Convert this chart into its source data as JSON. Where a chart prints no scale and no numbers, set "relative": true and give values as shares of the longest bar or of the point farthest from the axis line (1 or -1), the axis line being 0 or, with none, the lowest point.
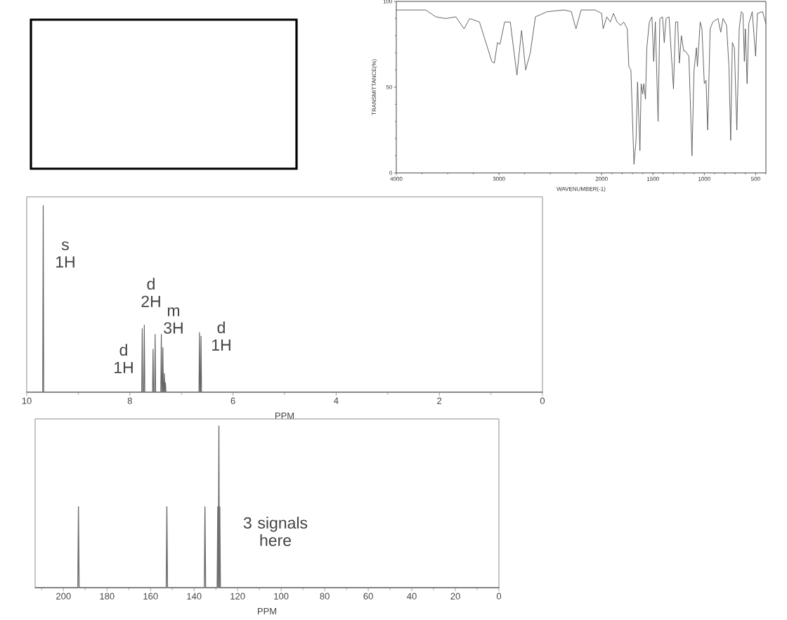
{
  "chart_data": [
    {
      "type": "line",
      "xlabel": "WAVENUMBER(-1)",
      "ylabel": "TRANSMITTANCE(%)",
      "x": [
        4000,
        3850,
        3715,
        3615,
        3520,
        3420,
        3340,
        3285,
        3190,
        3070,
        3045,
        3015,
        2990,
        2945,
        2890,
        2825,
        2780,
        2740,
        2695,
        2645,
        2530,
        2365,
        2295,
        2250,
        2200,
        2065,
        2000,
        1985,
        1950,
        1915,
        1885,
        1850,
        1815,
        1785,
        1750,
        1735,
        1715,
        1685,
        1665,
        1650,
        1627,
        1615,
        1600,
        1590,
        1573,
        1560,
        1535,
        1510,
        1493,
        1477,
        1450,
        1433,
        1407,
        1390,
        1373,
        1343,
        1323,
        1300,
        1280,
        1260,
        1243,
        1223,
        1200,
        1183,
        1150,
        1120,
        1100,
        1077,
        1067,
        1040,
        1023,
        1000,
        983,
        967,
        943,
        917,
        867,
        840,
        817,
        783,
        760,
        743,
        727,
        707,
        683,
        660,
        640,
        623,
        610,
        600,
        583,
        567,
        533,
        500,
        483,
        433,
        400
      ],
      "values": [
        95,
        95,
        95,
        91,
        90,
        91,
        84,
        90,
        88,
        65,
        64,
        76,
        75,
        88,
        88,
        57,
        83,
        60,
        70,
        91,
        94,
        95,
        94,
        84,
        95,
        95,
        93,
        84,
        91,
        88,
        93,
        88,
        86,
        88,
        84,
        62,
        60,
        5,
        19,
        53,
        13,
        52,
        46,
        52,
        43,
        73,
        88,
        91,
        65,
        88,
        30,
        90,
        91,
        76,
        90,
        91,
        71,
        49,
        88,
        88,
        64,
        80,
        71,
        71,
        68,
        10,
        60,
        73,
        62,
        88,
        84,
        52,
        54,
        25,
        84,
        88,
        90,
        82,
        90,
        86,
        62,
        19,
        76,
        73,
        25,
        84,
        94,
        93,
        65,
        84,
        52,
        87,
        94,
        68,
        93,
        94,
        87
      ],
      "color": "#555555",
      "xlim": [
        4000,
        400
      ],
      "xticks": [
        4000,
        {
          "value": 3750,
          "label": null
        },
        {
          "value": 3500,
          "label": null
        },
        {
          "value": 3250,
          "label": null
        },
        3000,
        {
          "value": 2750,
          "label": null
        },
        {
          "value": 2500,
          "label": null
        },
        {
          "value": 2250,
          "label": null
        },
        2000,
        {
          "value": 1900,
          "label": null
        },
        {
          "value": 1800,
          "label": null
        },
        {
          "value": 1700,
          "label": null
        },
        {
          "value": 1600,
          "label": null
        },
        1500,
        {
          "value": 1400,
          "label": null
        },
        {
          "value": 1300,
          "label": null
        },
        {
          "value": 1200,
          "label": null
        },
        {
          "value": 1100,
          "label": null
        },
        1000,
        {
          "value": 900,
          "label": null
        },
        {
          "value": 800,
          "label": null
        },
        {
          "value": 700,
          "label": null
        },
        {
          "value": 600,
          "label": null
        },
        500,
        {
          "value": 400,
          "label": null
        }
      ],
      "ylim": [
        0,
        100
      ],
      "yticks": [
        0,
        {
          "value": 10,
          "label": null
        },
        {
          "value": 20,
          "label": null
        },
        {
          "value": 30,
          "label": null
        },
        {
          "value": 40,
          "label": null
        },
        50,
        {
          "value": 60,
          "label": null
        },
        {
          "value": 70,
          "label": null
        },
        {
          "value": 80,
          "label": null
        },
        {
          "value": 90,
          "label": null
        },
        100
      ]
    },
    {
      "type": "line",
      "xlabel": "PPM",
      "relative": true,
      "x": [
        10,
        9.69,
        9.68,
        9.67,
        7.77,
        7.76,
        7.75,
        7.73,
        7.72,
        7.71,
        7.56,
        7.55,
        7.54,
        7.52,
        7.51,
        7.5,
        7.4,
        7.39,
        7.38,
        7.37,
        7.36,
        7.35,
        7.34,
        7.33,
        7.32,
        7.31,
        7.3,
        6.66,
        6.65,
        6.64,
        6.63,
        6.62,
        6.61,
        0
      ],
      "values": [
        0,
        0,
        1,
        0,
        0,
        0.34,
        0,
        0,
        0.36,
        0,
        0,
        0.23,
        0,
        0,
        0.31,
        0,
        0,
        0.31,
        0,
        0,
        0.24,
        0,
        0,
        0.1,
        0,
        0.05,
        0,
        0,
        0.32,
        0,
        0,
        0.3,
        0,
        0
      ],
      "color": "#666666",
      "xlim": [
        10,
        0
      ],
      "xticks": [
        10,
        {
          "value": 9,
          "label": null
        },
        8,
        {
          "value": 7,
          "label": null
        },
        6,
        {
          "value": 5,
          "label": null
        },
        4,
        {
          "value": 3,
          "label": null
        },
        2,
        {
          "value": 1,
          "label": null
        },
        0
      ],
      "annotations": [
        "s 1H",
        "d 2H",
        "m 3H",
        "d 1H",
        "d 1H"
      ]
    },
    {
      "type": "line",
      "xlabel": "PPM",
      "relative": true,
      "x": [
        213,
        193.4,
        193.1,
        192.8,
        152.8,
        152.5,
        152.2,
        135.3,
        135.0,
        134.7,
        129.4,
        129.1,
        128.9,
        128.6,
        128.4,
        128.2,
        127.9,
        0
      ],
      "values": [
        0,
        0,
        0.5,
        0,
        0,
        0.5,
        0,
        0,
        0.5,
        0,
        0,
        0.5,
        0,
        1,
        0,
        0.5,
        0,
        0
      ],
      "color": "#6e6e6e",
      "xlim": [
        213,
        0
      ],
      "xticks": [
        {
          "value": 210,
          "label": null
        },
        200,
        {
          "value": 190,
          "label": null
        },
        180,
        {
          "value": 170,
          "label": null
        },
        160,
        {
          "value": 150,
          "label": null
        },
        140,
        {
          "value": 130,
          "label": null
        },
        120,
        {
          "value": 110,
          "label": null
        },
        100,
        {
          "value": 90,
          "label": null
        },
        80,
        {
          "value": 70,
          "label": null
        },
        60,
        {
          "value": 50,
          "label": null
        },
        40,
        {
          "value": 30,
          "label": null
        },
        20,
        {
          "value": 10,
          "label": null
        },
        0
      ],
      "annotations": [
        "3 signals here"
      ]
    }
  ]
}
